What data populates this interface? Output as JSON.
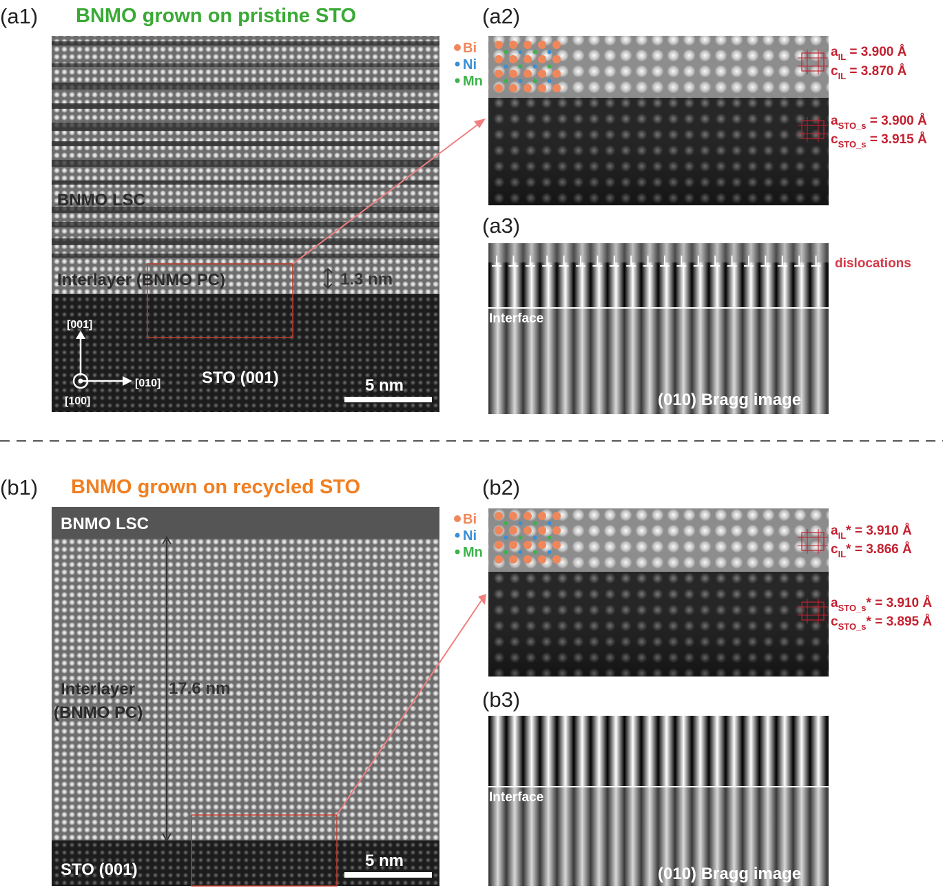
{
  "panels": {
    "a1": {
      "label": "(a1)",
      "title": "BNMO grown on pristine STO",
      "lsc": "BNMO LSC",
      "interlayer": "Interlayer (BNMO PC)",
      "thickness": "1.3 nm",
      "axis_001": "[001]",
      "axis_010": "[010]",
      "axis_100": "[100]",
      "substrate": "STO (001)",
      "scale": "5 nm"
    },
    "a2": {
      "label": "(a2)",
      "legend": [
        "Bi",
        "Ni",
        "Mn"
      ],
      "params": [
        {
          "sym": "a",
          "sub": "IL",
          "rest": " = 3.900 Å"
        },
        {
          "sym": "c",
          "sub": "IL",
          "rest": " = 3.870 Å"
        },
        {
          "sym": "a",
          "sub": "STO_s",
          "rest": " = 3.900 Å"
        },
        {
          "sym": "c",
          "sub": "STO_s",
          "rest": " = 3.915 Å"
        }
      ]
    },
    "a3": {
      "label": "(a3)",
      "dislocations": "dislocations",
      "interface": "Interface",
      "caption": "(010) Bragg image"
    },
    "b1": {
      "label": "(b1)",
      "title": "BNMO grown on recycled STO",
      "lsc": "BNMO LSC",
      "interlayer": [
        "Interlayer",
        "(BNMO PC)"
      ],
      "thickness": "17.6 nm",
      "substrate": "STO (001)",
      "scale": "5 nm"
    },
    "b2": {
      "label": "(b2)",
      "legend": [
        "Bi",
        "Ni",
        "Mn"
      ],
      "params": [
        {
          "sym": "a",
          "sub": "IL",
          "rest": "* = 3.910 Å"
        },
        {
          "sym": "c",
          "sub": "IL",
          "rest": "* = 3.866 Å"
        },
        {
          "sym": "a",
          "sub": "STO_s",
          "rest": "* = 3.910 Å"
        },
        {
          "sym": "c",
          "sub": "STO_s",
          "rest": "* = 3.895 Å"
        }
      ]
    },
    "b3": {
      "label": "(b3)",
      "interface": "Interface",
      "caption": "(010) Bragg image"
    }
  }
}
